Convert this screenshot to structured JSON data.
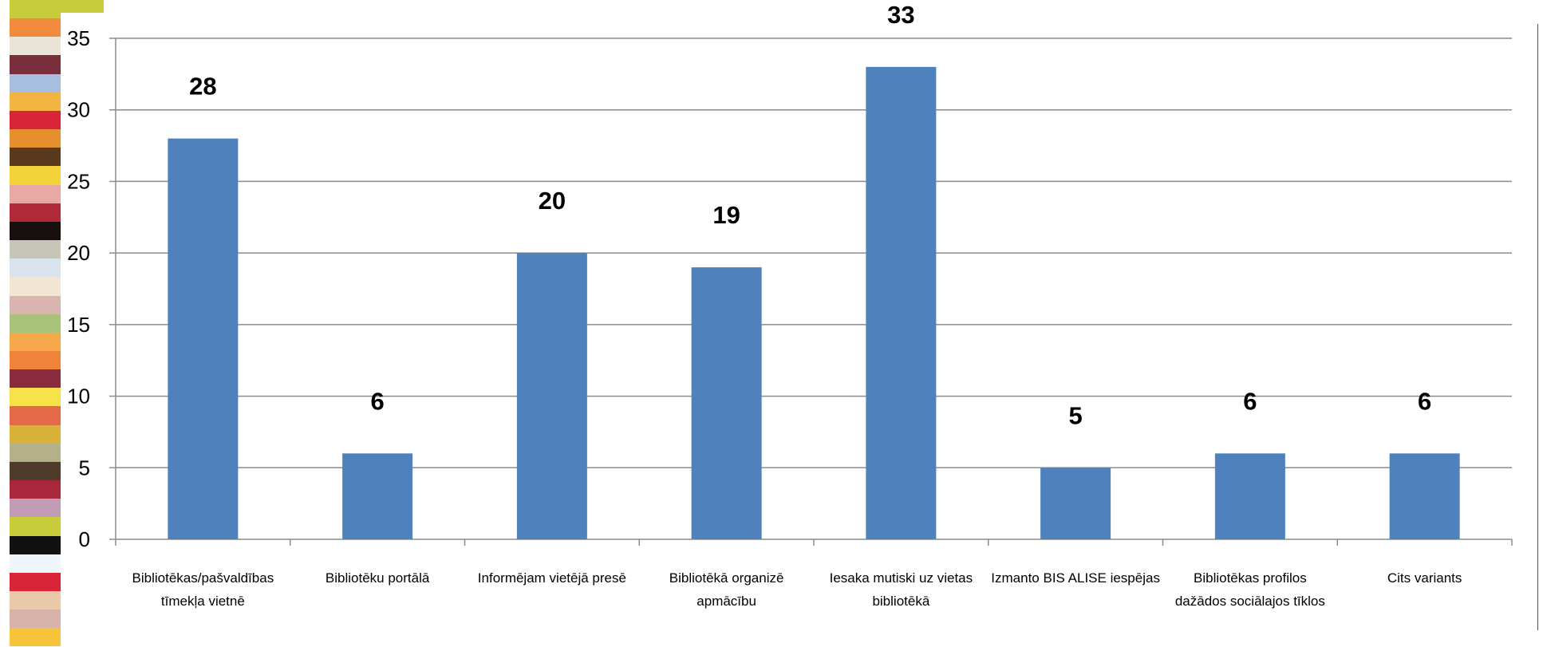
{
  "decor": {
    "stripe_colors": [
      "#c9cc3a",
      "#f28b3b",
      "#e9e4d6",
      "#7a2f3c",
      "#a6bfe0",
      "#f2b441",
      "#d9243a",
      "#e68f2f",
      "#5a3a1e",
      "#f4d23a",
      "#e8a9a4",
      "#b02a3a",
      "#1a0f0f",
      "#c7c5b8",
      "#d8e3ee",
      "#f1e6d2",
      "#d9b4b0",
      "#a9c27a",
      "#f7a84b",
      "#f0843c",
      "#8b2b3f",
      "#f7e24a",
      "#e46a4a",
      "#d9b23a",
      "#b3b08a",
      "#4e3b2a",
      "#a8273a",
      "#c29bb5",
      "#c9cc3a",
      "#111111",
      "#eef6fb",
      "#d9243a",
      "#eac9a8",
      "#d7b3aa",
      "#f6c33a"
    ]
  },
  "chart_data": {
    "type": "bar",
    "categories": [
      [
        "Bibliotēkas/pašvaldības",
        "tīmekļa vietnē"
      ],
      [
        "Bibliotēku portālā"
      ],
      [
        "Informējam vietējā presē"
      ],
      [
        "Bibliotēkā organizē",
        "apmācību"
      ],
      [
        "Iesaka mutiski uz vietas",
        "bibliotēkā"
      ],
      [
        "Izmanto BIS ALISE iespējas"
      ],
      [
        "Bibliotēkas profilos",
        "dažādos sociālajos tīklos"
      ],
      [
        "Cits variants"
      ]
    ],
    "values": [
      28,
      6,
      20,
      19,
      33,
      5,
      6,
      6
    ],
    "data_labels": [
      "28",
      "6",
      "20",
      "19",
      "33",
      "5",
      "6",
      "6"
    ],
    "ylim": [
      0,
      35
    ],
    "yticks": [
      "0",
      "5",
      "10",
      "15",
      "20",
      "25",
      "30",
      "35"
    ],
    "bar_color": "#4f81bd",
    "grid": true,
    "title": "",
    "xlabel": "",
    "ylabel": ""
  }
}
